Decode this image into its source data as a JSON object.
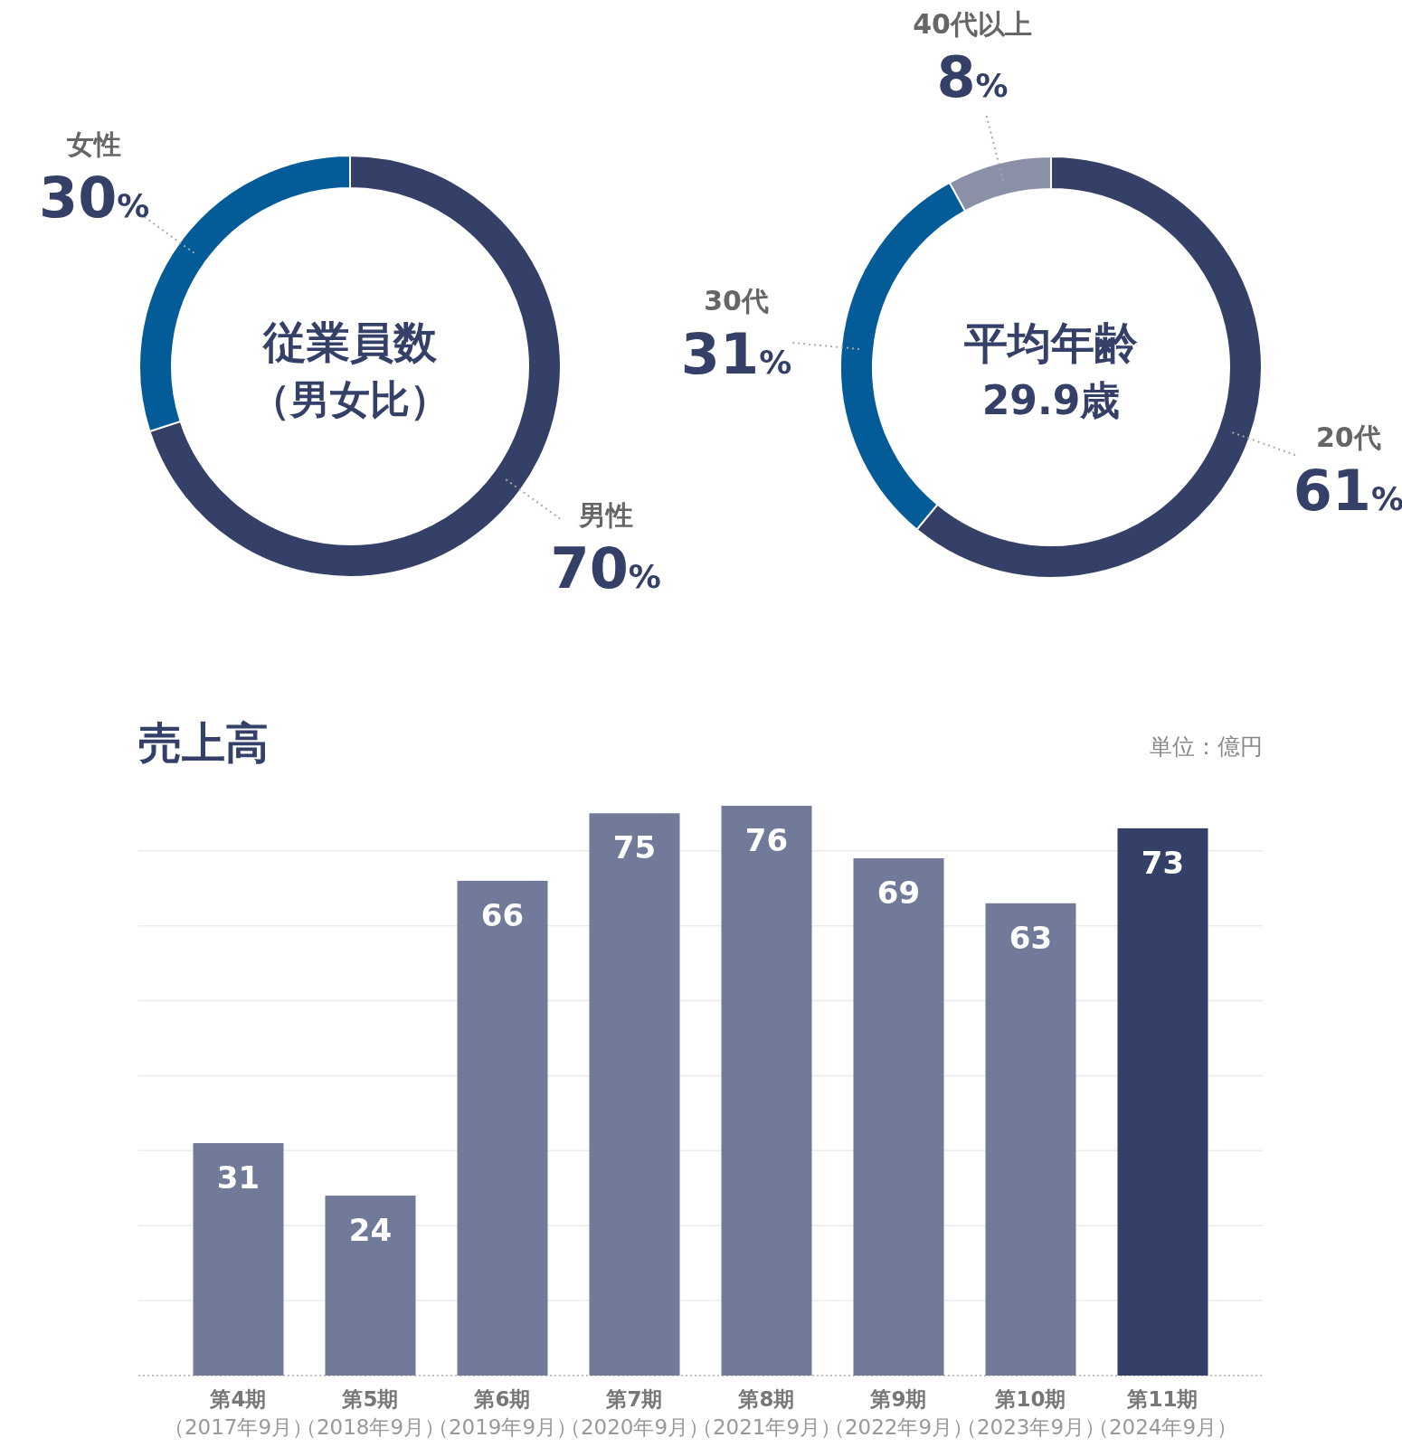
{
  "chart_data": [
    {
      "type": "donut",
      "title": "従業員数",
      "subtitle": "（男女比）",
      "categories": [
        "男性",
        "女性"
      ],
      "values": [
        70,
        30
      ],
      "value_labels": [
        "70%",
        "30%"
      ],
      "colors": [
        "#344068",
        "#035b98"
      ]
    },
    {
      "type": "donut",
      "title": "平均年齢",
      "subtitle": "29.9歳",
      "categories": [
        "20代",
        "30代",
        "40代以上"
      ],
      "values": [
        61,
        31,
        8
      ],
      "value_labels": [
        "61%",
        "31%",
        "8%"
      ],
      "colors": [
        "#344068",
        "#035b98",
        "#8a90a8"
      ]
    },
    {
      "type": "bar",
      "title": "売上高",
      "annotations": [
        "単位：億円"
      ],
      "categories": [
        "第4期（2017年9月）",
        "第5期（2018年9月）",
        "第6期（2019年9月）",
        "第7期（2020年9月）",
        "第8期（2021年9月）",
        "第9期（2022年9月）",
        "第10期（2023年9月）",
        "第11期（2024年9月）"
      ],
      "values": [
        31,
        24,
        66,
        75,
        76,
        69,
        63,
        73
      ],
      "colors": [
        "#717a98",
        "#717a98",
        "#717a98",
        "#717a98",
        "#717a98",
        "#717a98",
        "#717a98",
        "#344068"
      ],
      "data_labels": true,
      "yticks": [
        {
          "value": 10,
          "label": null
        },
        {
          "value": 20,
          "label": null
        },
        {
          "value": 30,
          "label": null
        },
        {
          "value": 40,
          "label": null
        },
        {
          "value": 50,
          "label": null
        },
        {
          "value": 60,
          "label": null
        },
        {
          "value": 70,
          "label": null
        }
      ],
      "grid": "y",
      "tick_labels": "x"
    }
  ]
}
